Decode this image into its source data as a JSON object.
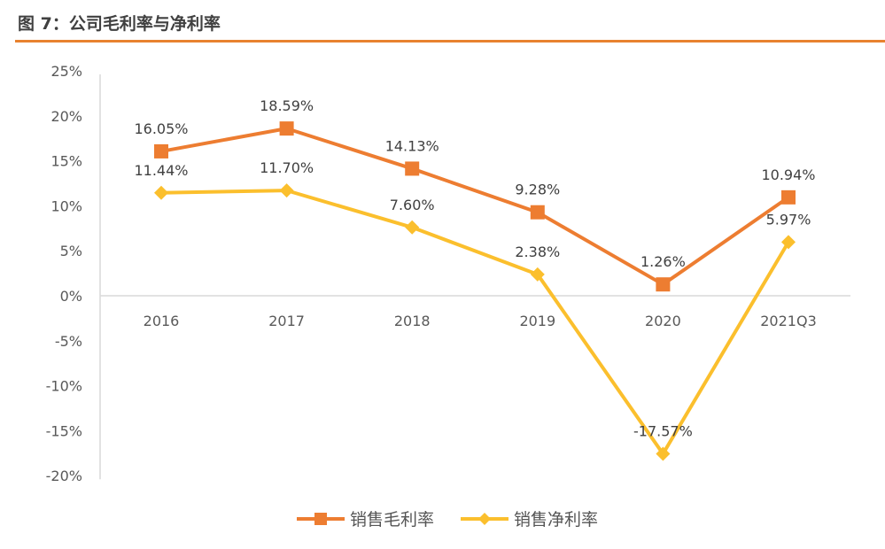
{
  "header": {
    "title": "图 7：公司毛利率与净利率"
  },
  "chart_data": {
    "type": "line",
    "title": "",
    "categories": [
      "2016",
      "2017",
      "2018",
      "2019",
      "2020",
      "2021Q3"
    ],
    "series": [
      {
        "name": "销售毛利率",
        "values": [
          16.05,
          18.59,
          14.13,
          9.28,
          1.26,
          10.94
        ],
        "labels": [
          "16.05%",
          "18.59%",
          "14.13%",
          "9.28%",
          "1.26%",
          "10.94%"
        ],
        "color": "#ED7D31",
        "marker": "square"
      },
      {
        "name": "销售净利率",
        "values": [
          11.44,
          11.7,
          7.6,
          2.38,
          -17.57,
          5.97
        ],
        "labels": [
          "11.44%",
          "11.70%",
          "7.60%",
          "2.38%",
          "-17.57%",
          "5.97%"
        ],
        "color": "#FBBF2D",
        "marker": "diamond"
      }
    ],
    "ylim": [
      -20,
      25
    ],
    "yticks": [
      "-20%",
      "-15%",
      "-10%",
      "-5%",
      "0%",
      "5%",
      "10%",
      "15%",
      "20%",
      "25%"
    ],
    "grid": false,
    "legend": "bottom"
  }
}
